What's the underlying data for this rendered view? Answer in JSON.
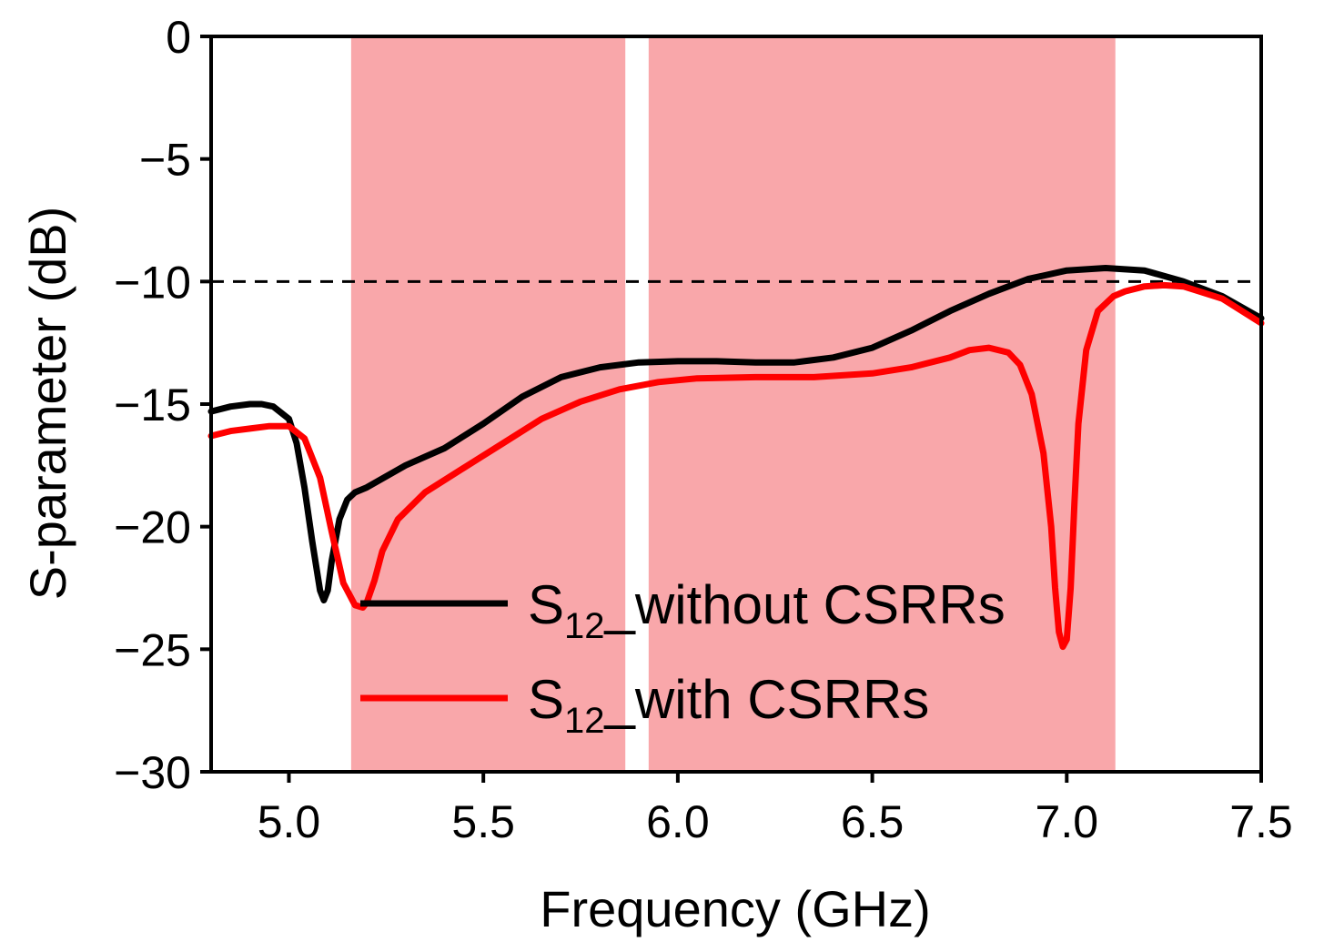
{
  "chart_data": {
    "type": "line",
    "xlabel": "Frequency (GHz)",
    "ylabel": "S-parameter (dB)",
    "xlim": [
      4.8,
      7.5
    ],
    "ylim": [
      -30,
      0
    ],
    "xticks": [
      5.0,
      5.5,
      6.0,
      6.5,
      7.0,
      7.5
    ],
    "xtick_labels": [
      "5.0",
      "5.5",
      "6.0",
      "6.5",
      "7.0",
      "7.5"
    ],
    "yticks": [
      0,
      -5,
      -10,
      -15,
      -20,
      -25,
      -30
    ],
    "ytick_labels": [
      "0",
      "−5",
      "−10",
      "−15",
      "−20",
      "−25",
      "−30"
    ],
    "reference_line": {
      "y": -10,
      "style": "dashed",
      "color": "#000000"
    },
    "shaded_bands": [
      {
        "x_start": 5.16,
        "x_end": 5.865,
        "color": "#f9a7aa"
      },
      {
        "x_start": 5.925,
        "x_end": 7.125,
        "color": "#f9a7aa"
      }
    ],
    "legend": {
      "position": "lower-center"
    },
    "series": [
      {
        "name": "S12_without CSRRs",
        "legend_main": "S",
        "legend_sub": "12",
        "legend_rest": "_without CSRRs",
        "color": "#000000",
        "x": [
          4.8,
          4.85,
          4.9,
          4.93,
          4.96,
          5.0,
          5.02,
          5.04,
          5.06,
          5.08,
          5.09,
          5.1,
          5.11,
          5.13,
          5.15,
          5.17,
          5.2,
          5.3,
          5.4,
          5.5,
          5.6,
          5.7,
          5.8,
          5.9,
          6.0,
          6.1,
          6.2,
          6.3,
          6.4,
          6.5,
          6.6,
          6.7,
          6.8,
          6.9,
          7.0,
          7.1,
          7.2,
          7.3,
          7.4,
          7.5
        ],
        "y": [
          -15.3,
          -15.1,
          -15.0,
          -15.0,
          -15.1,
          -15.6,
          -16.6,
          -18.4,
          -20.6,
          -22.6,
          -23.0,
          -22.6,
          -21.4,
          -19.7,
          -18.9,
          -18.6,
          -18.4,
          -17.5,
          -16.8,
          -15.8,
          -14.7,
          -13.9,
          -13.5,
          -13.3,
          -13.25,
          -13.25,
          -13.3,
          -13.3,
          -13.1,
          -12.7,
          -12.0,
          -11.2,
          -10.5,
          -9.9,
          -9.55,
          -9.45,
          -9.55,
          -10.0,
          -10.6,
          -11.5
        ]
      },
      {
        "name": "S12_with CSRRs",
        "legend_main": "S",
        "legend_sub": "12",
        "legend_rest": "_with CSRRs",
        "color": "#ff0000",
        "x": [
          4.8,
          4.85,
          4.9,
          4.95,
          5.0,
          5.04,
          5.08,
          5.11,
          5.14,
          5.17,
          5.19,
          5.2,
          5.22,
          5.24,
          5.28,
          5.35,
          5.45,
          5.55,
          5.65,
          5.75,
          5.85,
          5.95,
          6.05,
          6.2,
          6.35,
          6.5,
          6.6,
          6.7,
          6.75,
          6.8,
          6.85,
          6.88,
          6.91,
          6.94,
          6.96,
          6.97,
          6.98,
          6.99,
          7.0,
          7.01,
          7.02,
          7.03,
          7.05,
          7.08,
          7.12,
          7.15,
          7.2,
          7.25,
          7.3,
          7.4,
          7.5
        ],
        "y": [
          -16.3,
          -16.1,
          -16.0,
          -15.9,
          -15.9,
          -16.4,
          -18.0,
          -20.2,
          -22.3,
          -23.2,
          -23.3,
          -23.1,
          -22.2,
          -21.0,
          -19.7,
          -18.6,
          -17.6,
          -16.6,
          -15.6,
          -14.9,
          -14.4,
          -14.1,
          -13.95,
          -13.9,
          -13.9,
          -13.75,
          -13.5,
          -13.1,
          -12.8,
          -12.7,
          -12.9,
          -13.4,
          -14.6,
          -17.0,
          -20.0,
          -22.5,
          -24.3,
          -24.9,
          -24.6,
          -22.5,
          -19.0,
          -15.8,
          -12.8,
          -11.2,
          -10.6,
          -10.4,
          -10.2,
          -10.15,
          -10.2,
          -10.7,
          -11.7
        ]
      }
    ]
  }
}
